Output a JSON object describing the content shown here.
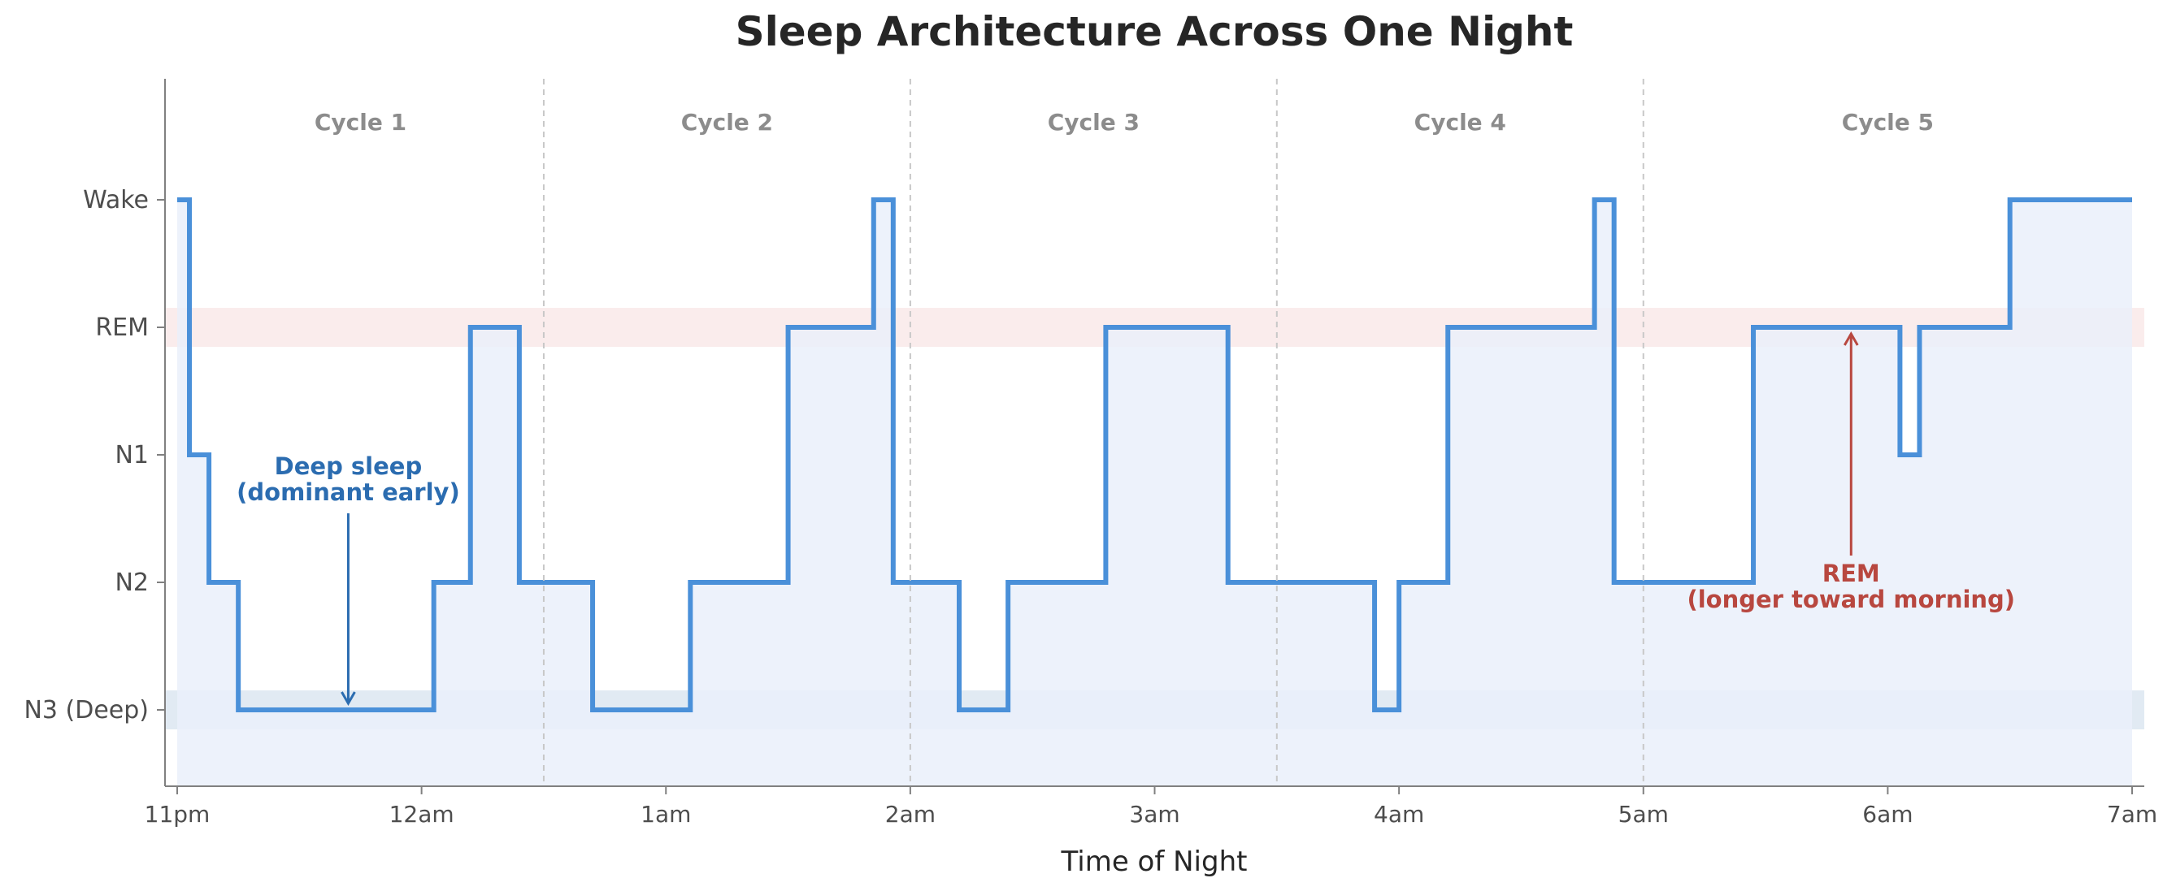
{
  "chart_data": {
    "type": "line",
    "step": true,
    "title": "Sleep Architecture Across One Night",
    "xlabel": "Time of Night",
    "ylabel": "",
    "x_unit": "hours after 11pm",
    "xlim": [
      -0.05,
      8.05
    ],
    "stages": [
      "N3 (Deep)",
      "N2",
      "N1",
      "REM",
      "Wake"
    ],
    "x_ticks": [
      {
        "x": 0,
        "label": "11pm"
      },
      {
        "x": 1,
        "label": "12am"
      },
      {
        "x": 2,
        "label": "1am"
      },
      {
        "x": 3,
        "label": "2am"
      },
      {
        "x": 4,
        "label": "3am"
      },
      {
        "x": 5,
        "label": "4am"
      },
      {
        "x": 6,
        "label": "5am"
      },
      {
        "x": 7,
        "label": "6am"
      },
      {
        "x": 8,
        "label": "7am"
      }
    ],
    "series": [
      {
        "color": "#4a90d9",
        "fill_color": "#eaf0fa",
        "points": [
          {
            "x": 0.0,
            "stage": "Wake"
          },
          {
            "x": 0.05,
            "stage": "N1"
          },
          {
            "x": 0.13,
            "stage": "N2"
          },
          {
            "x": 0.25,
            "stage": "N3 (Deep)"
          },
          {
            "x": 1.05,
            "stage": "N2"
          },
          {
            "x": 1.2,
            "stage": "REM"
          },
          {
            "x": 1.4,
            "stage": "N2"
          },
          {
            "x": 1.7,
            "stage": "N3 (Deep)"
          },
          {
            "x": 2.1,
            "stage": "N2"
          },
          {
            "x": 2.5,
            "stage": "REM"
          },
          {
            "x": 2.85,
            "stage": "Wake"
          },
          {
            "x": 2.93,
            "stage": "N2"
          },
          {
            "x": 3.2,
            "stage": "N3 (Deep)"
          },
          {
            "x": 3.4,
            "stage": "N2"
          },
          {
            "x": 3.8,
            "stage": "REM"
          },
          {
            "x": 4.3,
            "stage": "N2"
          },
          {
            "x": 4.9,
            "stage": "N3 (Deep)"
          },
          {
            "x": 5.0,
            "stage": "N2"
          },
          {
            "x": 5.2,
            "stage": "REM"
          },
          {
            "x": 5.8,
            "stage": "Wake"
          },
          {
            "x": 5.88,
            "stage": "N2"
          },
          {
            "x": 6.45,
            "stage": "REM"
          },
          {
            "x": 7.05,
            "stage": "N1"
          },
          {
            "x": 7.13,
            "stage": "REM"
          },
          {
            "x": 7.5,
            "stage": "Wake"
          },
          {
            "x": 8.0,
            "stage": "Wake"
          }
        ]
      }
    ],
    "bands": [
      {
        "stage": "REM",
        "color": "#f5dcdc"
      },
      {
        "stage": "N3 (Deep)",
        "color": "#c9d9ea"
      }
    ],
    "cycles": [
      {
        "label": "Cycle 1",
        "x_center": 0.75
      },
      {
        "label": "Cycle 2",
        "x_center": 2.25
      },
      {
        "label": "Cycle 3",
        "x_center": 3.75
      },
      {
        "label": "Cycle 4",
        "x_center": 5.25
      },
      {
        "label": "Cycle 5",
        "x_center": 7.0
      }
    ],
    "cycle_boundaries": [
      1.5,
      3.0,
      4.5,
      6.0
    ],
    "annotations": [
      {
        "lines": [
          "Deep sleep",
          "(dominant early)"
        ],
        "color": "#2b6cb0",
        "arrow_to": {
          "x": 0.7,
          "stage": "N3 (Deep)"
        }
      },
      {
        "lines": [
          "REM",
          "(longer toward morning)"
        ],
        "color": "#b8473f",
        "arrow_to": {
          "x": 6.85,
          "stage": "REM"
        }
      }
    ],
    "grid": false,
    "legend": "none"
  }
}
